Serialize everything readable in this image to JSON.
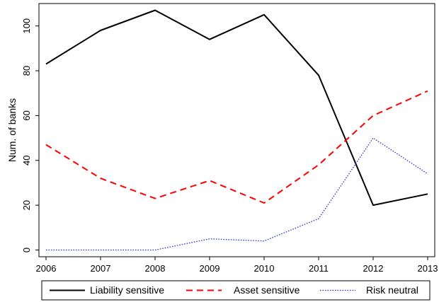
{
  "chart_data": {
    "type": "line",
    "title": "",
    "xlabel": "",
    "ylabel": "Num. of banks",
    "x": [
      2006,
      2007,
      2008,
      2009,
      2010,
      2011,
      2012,
      2013
    ],
    "xticks": [
      "2006",
      "2007",
      "2008",
      "2009",
      "2010",
      "2011",
      "2012",
      "2013"
    ],
    "yticks": [
      "0",
      "20",
      "40",
      "60",
      "80",
      "100"
    ],
    "ylim": [
      -3,
      110
    ],
    "grid": false,
    "legend_position": "bottom",
    "series": [
      {
        "name": "Liability sensitive",
        "color": "#000000",
        "style": "solid",
        "values": [
          83,
          98,
          107,
          94,
          105,
          78,
          20,
          25
        ]
      },
      {
        "name": "Asset sensitive",
        "color": "#ff0000",
        "style": "dashed",
        "values": [
          47,
          32,
          23,
          31,
          21,
          38,
          60,
          71
        ]
      },
      {
        "name": "Risk neutral",
        "color": "#2a2ad0",
        "style": "dotted",
        "values": [
          0,
          0,
          0,
          5,
          4,
          14,
          50,
          34
        ]
      }
    ]
  }
}
